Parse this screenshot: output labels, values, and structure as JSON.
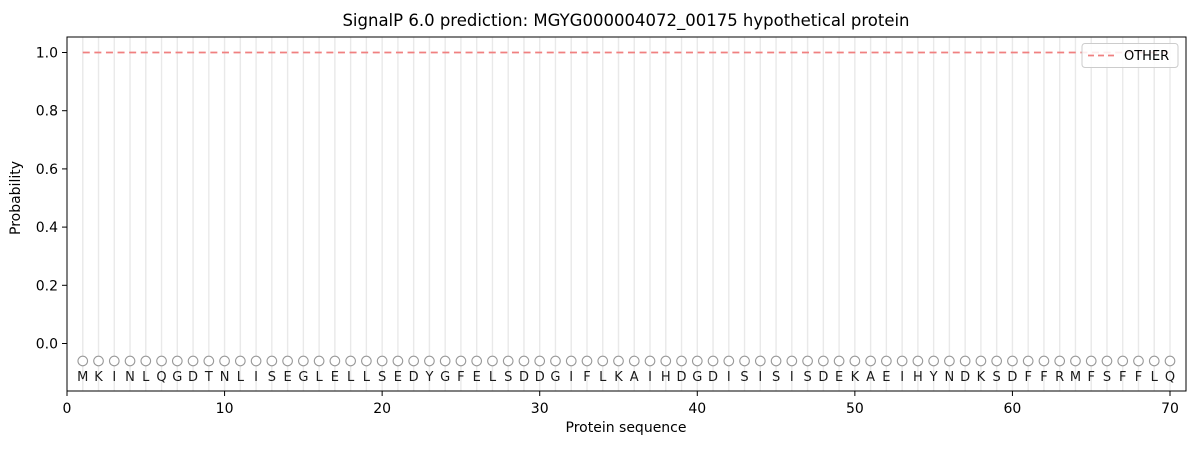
{
  "chart_data": {
    "type": "line",
    "title": "SignalP 6.0 prediction: MGYG000004072_00175 hypothetical protein",
    "xlabel": "Protein sequence",
    "ylabel": "Probability",
    "xlim": [
      0,
      71
    ],
    "ylim": [
      -0.163,
      1.053
    ],
    "xticks": [
      0,
      10,
      20,
      30,
      40,
      50,
      60,
      70
    ],
    "yticks": [
      0.0,
      0.2,
      0.4,
      0.6,
      0.8,
      1.0
    ],
    "grid": {
      "vertical_per_residue": true,
      "color": "#e9e9e9"
    },
    "sequence": "MKINLQGDTNLISEGLELLSEDYGFELSDDGIFLKAIHDGDISISISDEKAEIHYNDKSDFFRMFSFFLQ",
    "sequence_marker": {
      "shape": "open-circle",
      "color": "#999999",
      "fill": "#ffffff",
      "y_value": -0.06
    },
    "series": [
      {
        "name": "OTHER",
        "color": "#f08080",
        "linestyle": "dashed",
        "x_start": 1,
        "x_end": 70,
        "y_constant": 1.0
      }
    ],
    "legend": {
      "position": "upper-right",
      "border_color": "#cccccc",
      "entries": [
        {
          "label": "OTHER",
          "color": "#f08080",
          "linestyle": "dashed"
        }
      ]
    },
    "frame_color": "#000000",
    "background": "#ffffff"
  }
}
